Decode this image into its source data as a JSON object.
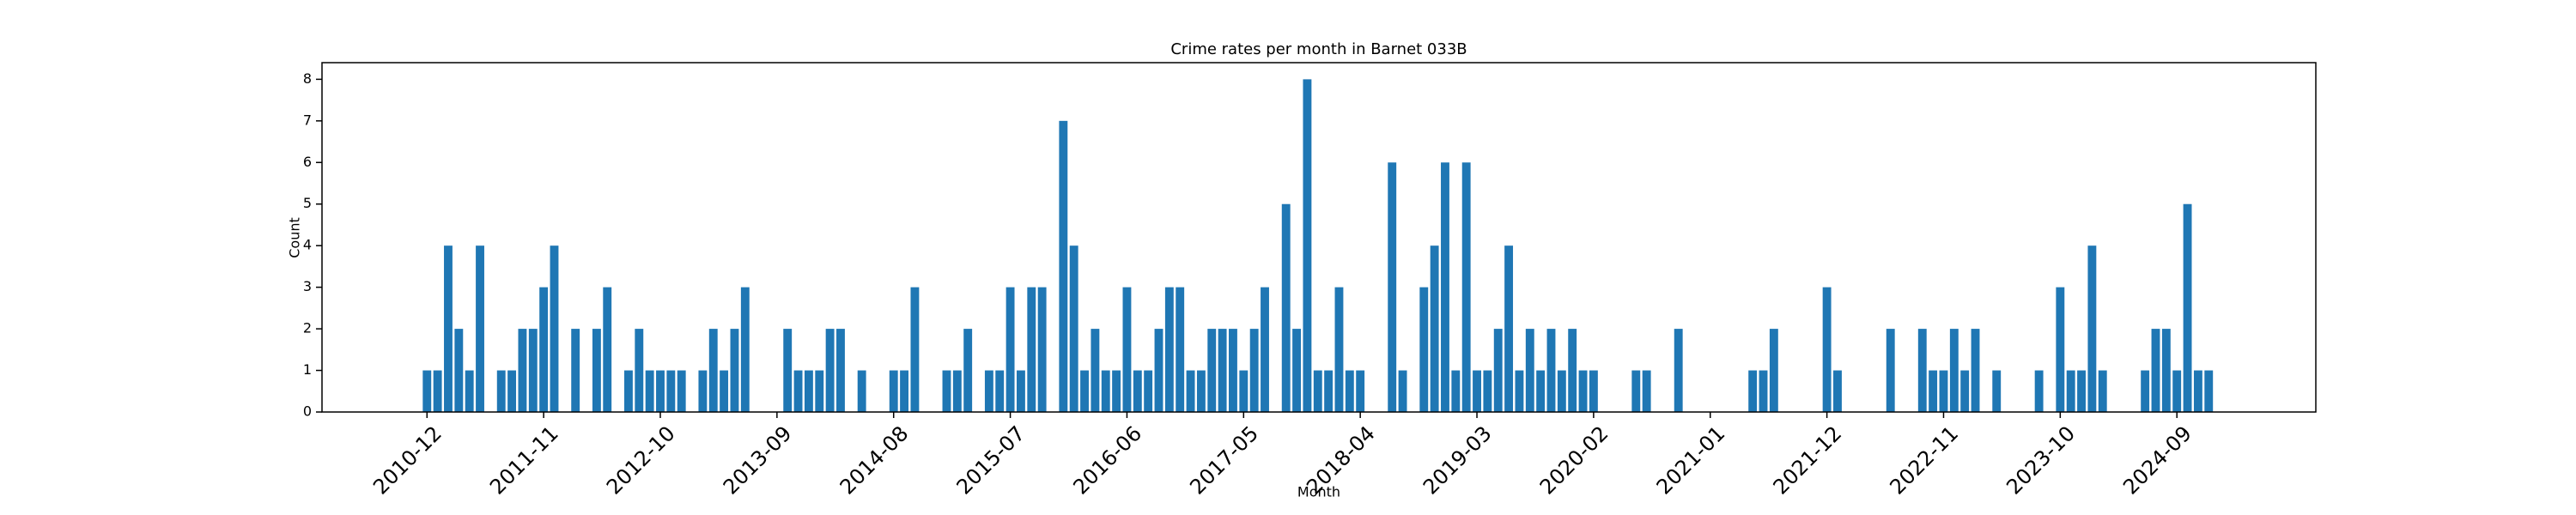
{
  "chart_data": {
    "type": "bar",
    "title": "Crime rates per month in Barnet 033B",
    "xlabel": "Month",
    "ylabel": "Count",
    "categories": [
      "2010-12",
      null,
      null,
      null,
      null,
      null,
      null,
      null,
      null,
      null,
      null,
      "2011-11",
      null,
      null,
      null,
      null,
      null,
      null,
      null,
      null,
      null,
      null,
      "2012-10",
      null,
      null,
      null,
      null,
      null,
      null,
      null,
      null,
      null,
      null,
      "2013-09",
      null,
      null,
      null,
      null,
      null,
      null,
      null,
      null,
      null,
      null,
      "2014-08",
      null,
      null,
      null,
      null,
      null,
      null,
      null,
      null,
      null,
      null,
      "2015-07",
      null,
      null,
      null,
      null,
      null,
      null,
      null,
      null,
      null,
      null,
      "2016-06",
      null,
      null,
      null,
      null,
      null,
      null,
      null,
      null,
      null,
      null,
      "2017-05",
      null,
      null,
      null,
      null,
      null,
      null,
      null,
      null,
      null,
      null,
      "2018-04",
      null,
      null,
      null,
      null,
      null,
      null,
      null,
      null,
      null,
      null,
      "2019-03",
      null,
      null,
      null,
      null,
      null,
      null,
      null,
      null,
      null,
      null,
      "2020-02",
      null,
      null,
      null,
      null,
      null,
      null,
      null,
      null,
      null,
      null,
      "2021-01",
      null,
      null,
      null,
      null,
      null,
      null,
      null,
      null,
      null,
      null,
      "2021-12",
      null,
      null,
      null,
      null,
      null,
      null,
      null,
      null,
      null,
      null,
      "2022-11",
      null,
      null,
      null,
      null,
      null,
      null,
      null,
      null,
      null,
      null,
      "2023-10",
      null,
      null,
      null,
      null,
      null,
      null,
      null,
      null,
      null,
      null,
      "2024-09",
      null,
      null,
      null
    ],
    "values": [
      1,
      1,
      4,
      2,
      1,
      4,
      0,
      1,
      1,
      2,
      2,
      3,
      4,
      0,
      2,
      0,
      2,
      3,
      0,
      1,
      2,
      1,
      1,
      1,
      1,
      0,
      1,
      2,
      1,
      2,
      3,
      0,
      0,
      0,
      2,
      1,
      1,
      1,
      2,
      2,
      0,
      1,
      0,
      0,
      1,
      1,
      3,
      0,
      0,
      1,
      1,
      2,
      0,
      1,
      1,
      3,
      1,
      3,
      3,
      0,
      7,
      4,
      1,
      2,
      1,
      1,
      3,
      1,
      1,
      2,
      3,
      3,
      1,
      1,
      2,
      2,
      2,
      1,
      2,
      3,
      0,
      5,
      2,
      8,
      1,
      1,
      3,
      1,
      1,
      0,
      0,
      6,
      1,
      0,
      3,
      4,
      6,
      1,
      6,
      1,
      1,
      2,
      4,
      1,
      2,
      1,
      2,
      1,
      2,
      1,
      1,
      0,
      0,
      0,
      1,
      1,
      0,
      0,
      2,
      0,
      0,
      0,
      0,
      0,
      0,
      1,
      1,
      2,
      0,
      0,
      0,
      0,
      3,
      1,
      0,
      0,
      0,
      0,
      2,
      0,
      0,
      2,
      1,
      1,
      2,
      1,
      2,
      0,
      1,
      0,
      0,
      0,
      1,
      0,
      3,
      1,
      1,
      4,
      1,
      0,
      0,
      0,
      1,
      2,
      2,
      1,
      5,
      1,
      1
    ],
    "color": "#1f77b4",
    "xlim": [
      -9.9,
      178.1
    ],
    "ylim": [
      0,
      8.4
    ],
    "yticks": [
      0,
      1,
      2,
      3,
      4,
      5,
      6,
      7,
      8
    ]
  }
}
